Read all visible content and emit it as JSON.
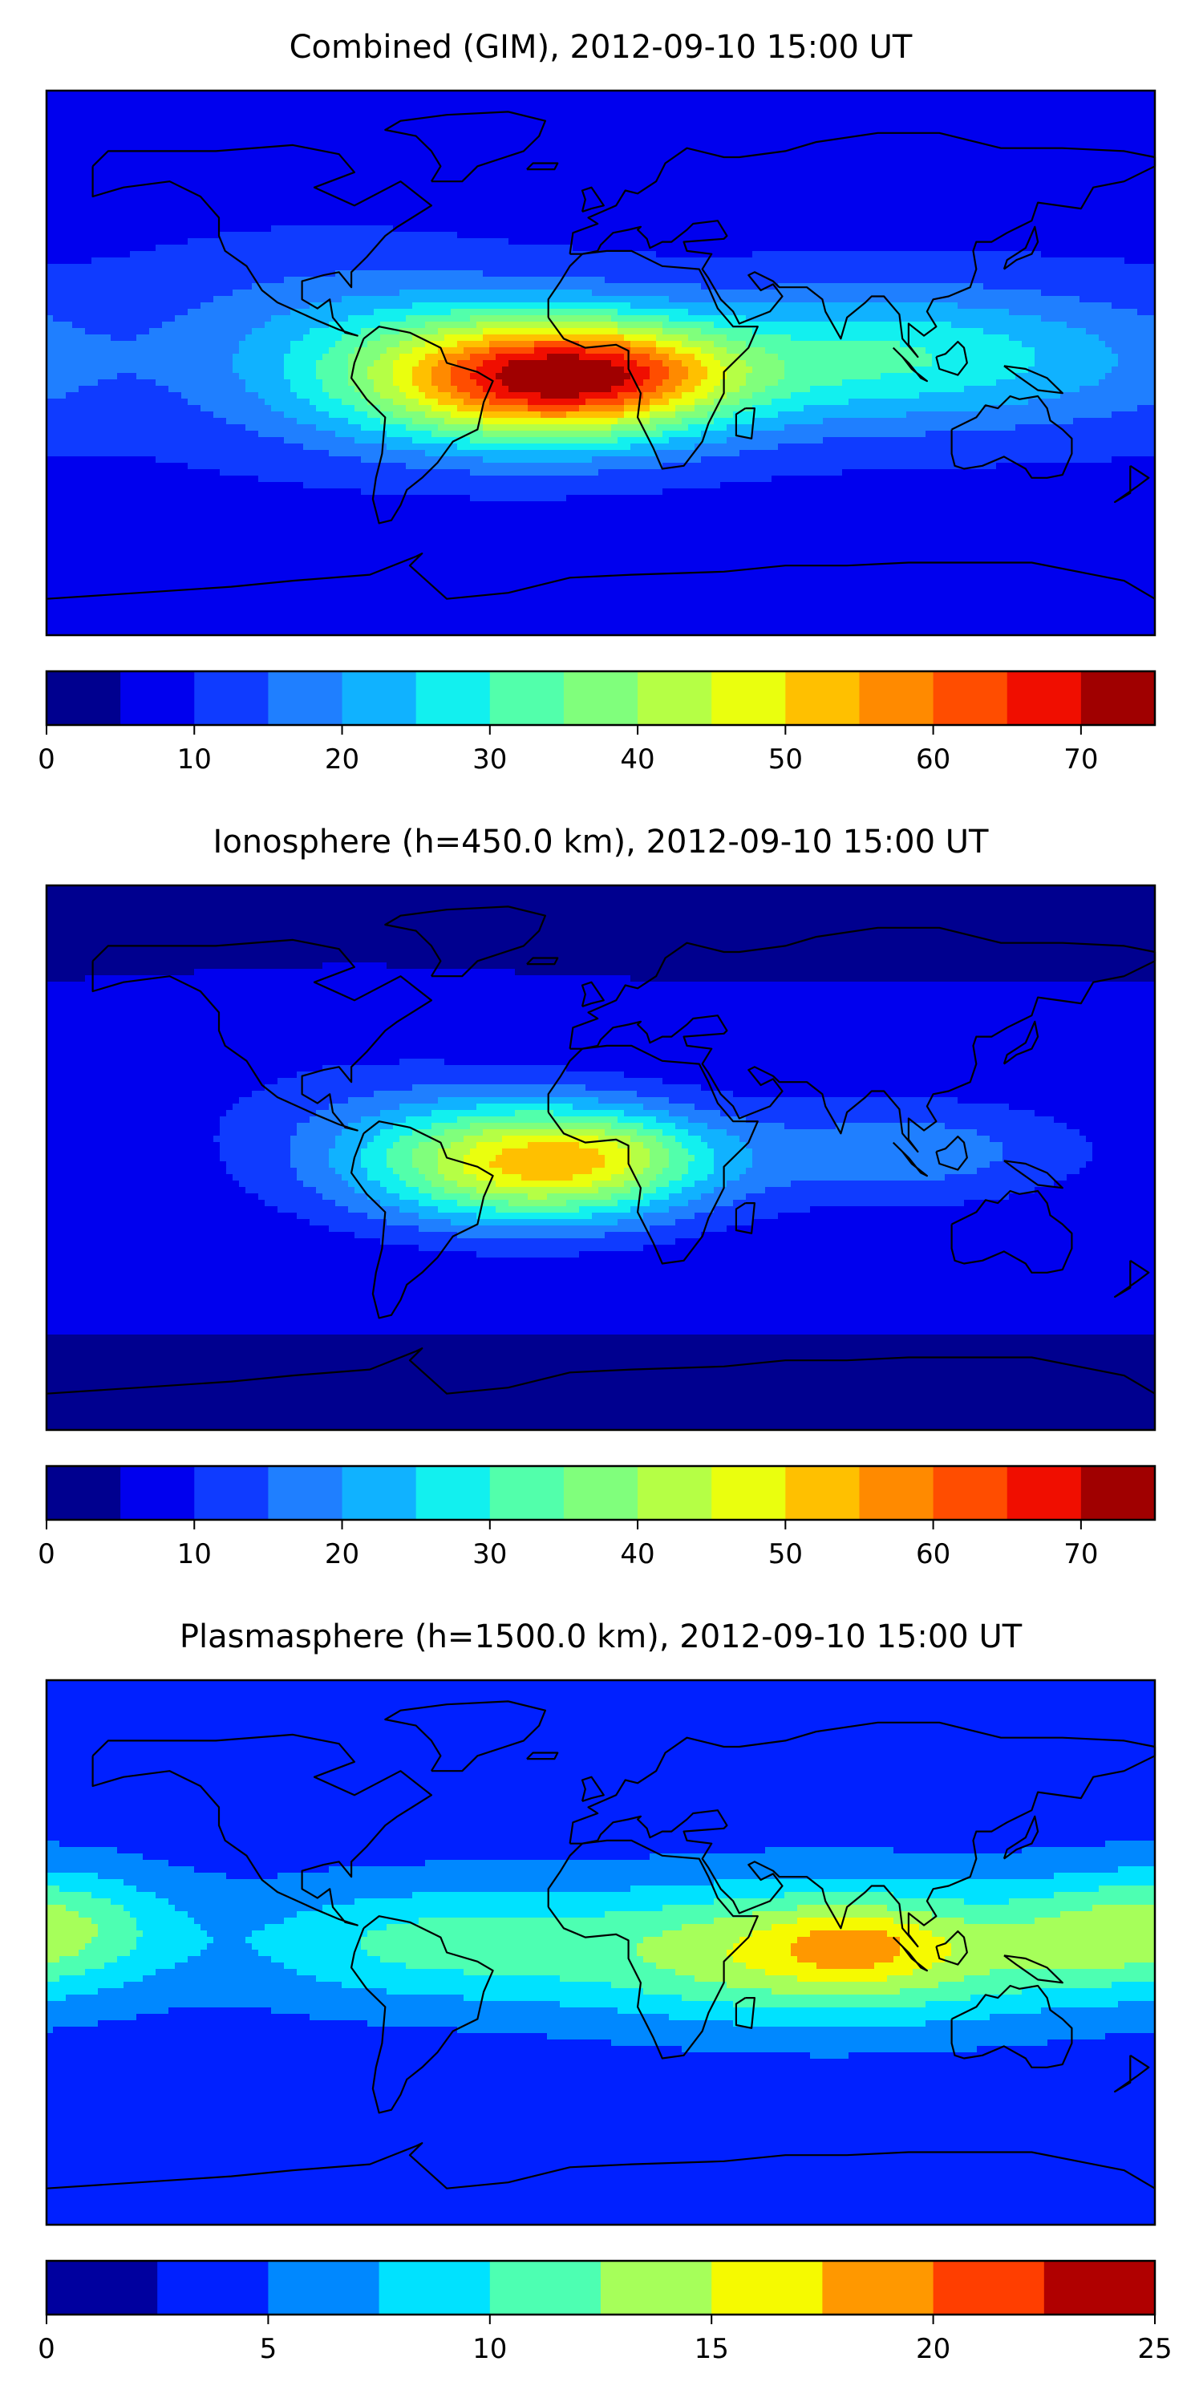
{
  "chart_data": [
    {
      "type": "heatmap",
      "title": "Combined (GIM), 2012-09-10 15:00 UT",
      "colorbar": {
        "range": [
          0,
          75
        ],
        "bin_step": 5,
        "tick_labels": [
          "0",
          "10",
          "20",
          "30",
          "40",
          "50",
          "60",
          "70"
        ],
        "tick_values": [
          0,
          10,
          20,
          30,
          40,
          50,
          60,
          70
        ]
      },
      "colormap": [
        "#00008f",
        "#0000ee",
        "#0f3bff",
        "#1f7fff",
        "#10b2ff",
        "#12f0ef",
        "#52ffab",
        "#80ff7c",
        "#b5ff45",
        "#eaff0e",
        "#ffc000",
        "#ff8a00",
        "#ff4d00",
        "#f00e00",
        "#a00000"
      ],
      "features": [
        {
          "lon": -17,
          "lat": -5,
          "sx": 42,
          "sy": 15,
          "amp": 58
        },
        {
          "lon": 8,
          "lat": -3,
          "sx": 28,
          "sy": 10,
          "amp": 10
        },
        {
          "lon": -90,
          "lat": 5,
          "sx": 45,
          "sy": 22,
          "amp": 10
        },
        {
          "lon": 95,
          "lat": 2,
          "sx": 42,
          "sy": 16,
          "amp": 20
        },
        {
          "lon": 160,
          "lat": 0,
          "sx": 30,
          "sy": 16,
          "amp": 6
        }
      ],
      "base": 9
    },
    {
      "type": "heatmap",
      "title": "Ionosphere  (h=450.0 km), 2012-09-10 15:00 UT",
      "colorbar": {
        "range": [
          0,
          75
        ],
        "bin_step": 5,
        "tick_labels": [
          "0",
          "10",
          "20",
          "30",
          "40",
          "50",
          "60",
          "70"
        ],
        "tick_values": [
          0,
          10,
          20,
          30,
          40,
          50,
          60,
          70
        ]
      },
      "colormap": [
        "#00008f",
        "#0000ee",
        "#0f3bff",
        "#1f7fff",
        "#10b2ff",
        "#12f0ef",
        "#52ffab",
        "#80ff7c",
        "#b5ff45",
        "#eaff0e",
        "#ffc000",
        "#ff8a00",
        "#ff4d00",
        "#f00e00",
        "#a00000"
      ],
      "features": [
        {
          "lon": -20,
          "lat": -2,
          "sx": 38,
          "sy": 14,
          "amp": 44
        },
        {
          "lon": 5,
          "lat": 2,
          "sx": 20,
          "sy": 8,
          "amp": 6
        },
        {
          "lon": -80,
          "lat": 10,
          "sx": 40,
          "sy": 20,
          "amp": 6
        },
        {
          "lon": 100,
          "lat": 2,
          "sx": 40,
          "sy": 12,
          "amp": 12
        }
      ],
      "base": 6
    },
    {
      "type": "heatmap",
      "title": "Plasmasphere (h=1500.0 km), 2012-09-10 15:00 UT",
      "colorbar": {
        "range": [
          0,
          25
        ],
        "bin_step": 2.5,
        "tick_labels": [
          "0",
          "5",
          "10",
          "15",
          "20",
          "25"
        ],
        "tick_values": [
          0,
          5,
          10,
          15,
          20,
          25
        ]
      },
      "colormap": [
        "#00009f",
        "#0020ff",
        "#0088ff",
        "#00e2ff",
        "#4dffb2",
        "#a6ff5a",
        "#f6fa00",
        "#ff9800",
        "#ff3e00",
        "#b00000"
      ],
      "features": [
        {
          "lon": 75,
          "lat": 0,
          "sx": 60,
          "sy": 16,
          "amp": 12
        },
        {
          "lon": 82,
          "lat": 3,
          "sx": 18,
          "sy": 8,
          "amp": 3.5
        },
        {
          "lon": -60,
          "lat": 3,
          "sx": 45,
          "sy": 14,
          "amp": 6
        },
        {
          "lon": -170,
          "lat": 8,
          "sx": 25,
          "sy": 14,
          "amp": 5
        },
        {
          "lon": 165,
          "lat": 8,
          "sx": 25,
          "sy": 14,
          "amp": 4
        }
      ],
      "base": 4
    }
  ]
}
